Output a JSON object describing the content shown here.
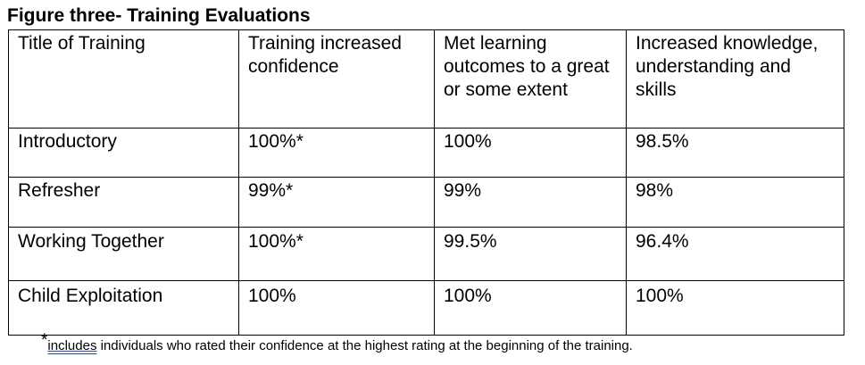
{
  "figure_title": "Figure three- Training Evaluations",
  "table": {
    "headers": [
      "Title of Training",
      "Training increased confidence",
      "Met learning outcomes to a great or some extent",
      "Increased knowledge, understanding and skills"
    ],
    "rows": [
      [
        "Introductory",
        "100%*",
        "100%",
        "98.5%"
      ],
      [
        "Refresher",
        "99%*",
        "99%",
        "98%"
      ],
      [
        "Working Together",
        "100%*",
        "99.5%",
        "96.4%"
      ],
      [
        "Child Exploitation",
        "100%",
        "100%",
        "100%"
      ]
    ]
  },
  "footnote": {
    "marker": "*",
    "underlined_word": "includes",
    "text": " individuals who rated their confidence at the highest rating at the beginning of the training."
  }
}
